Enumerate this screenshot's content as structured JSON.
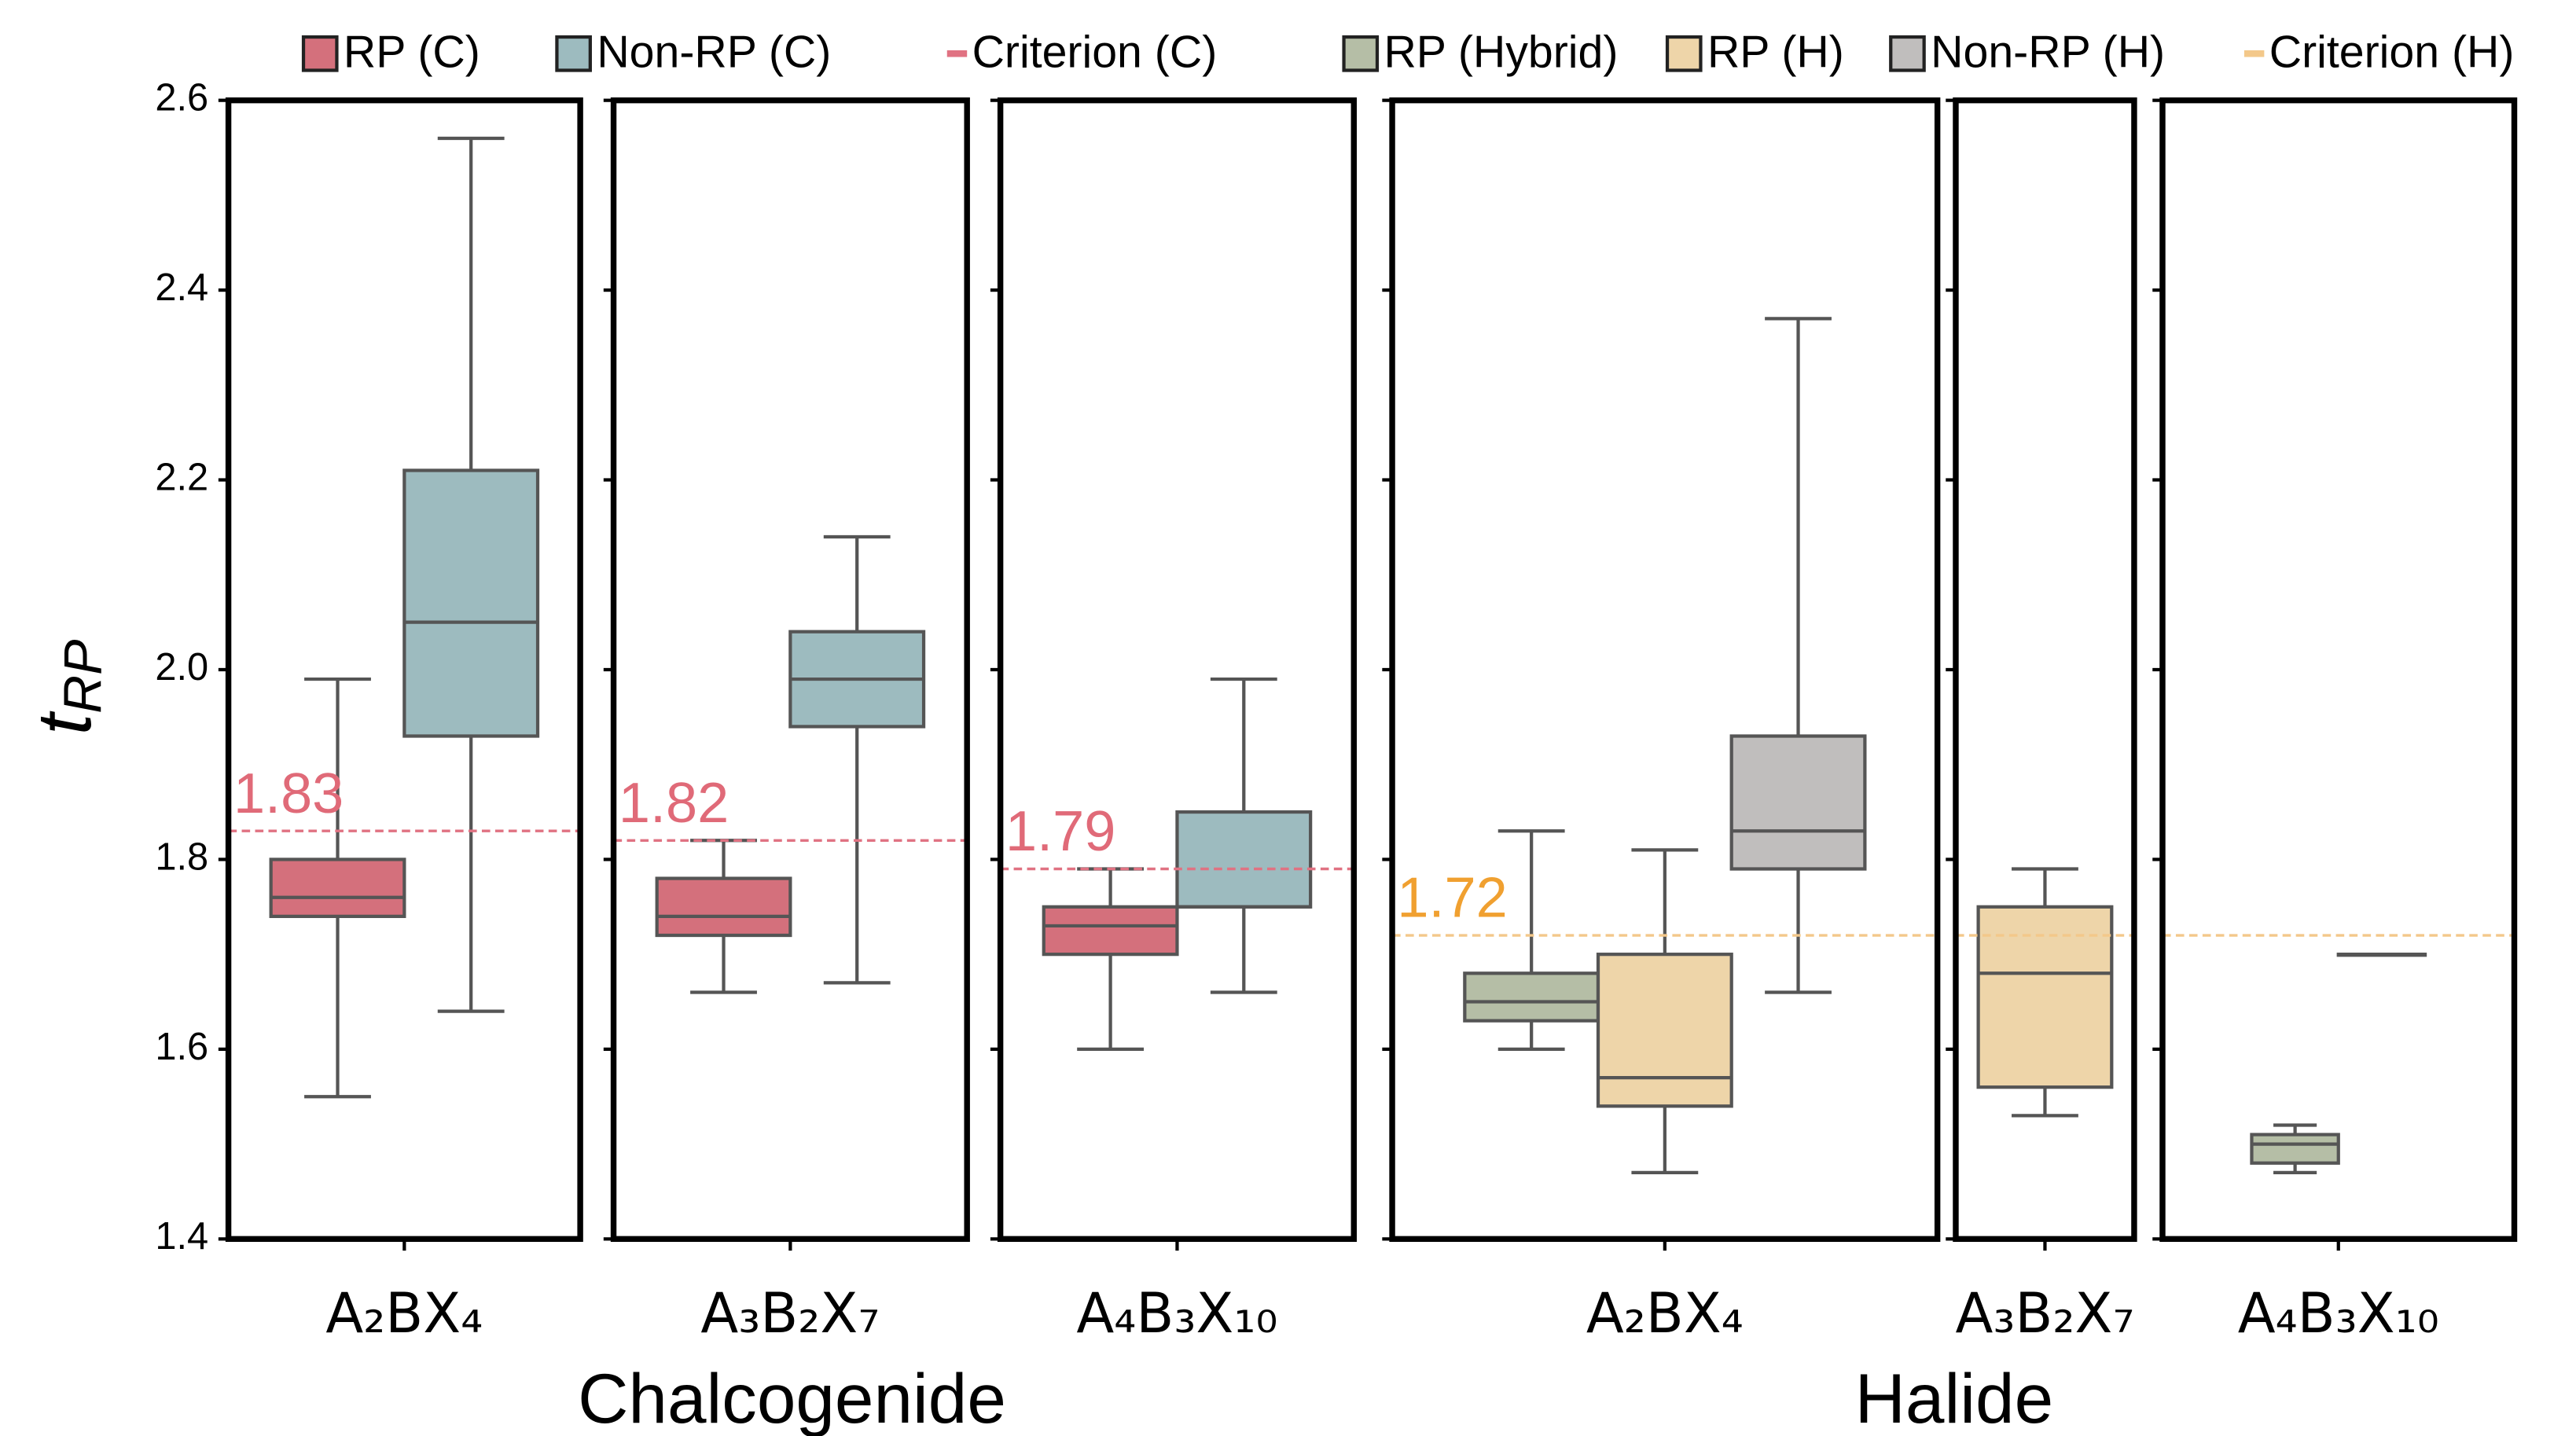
{
  "ylabel": "t",
  "ylabel_sub": "RP",
  "groups": [
    {
      "label": "Chalcogenide"
    },
    {
      "label": "Halide"
    }
  ],
  "chart_data": [
    {
      "type": "box",
      "category": "A₂BX₄",
      "ylim": [
        1.4,
        2.6
      ],
      "yticks": [
        1.4,
        1.6,
        1.8,
        {
          "value": 2,
          "label": "2.0"
        },
        2.2,
        2.4,
        2.6
      ],
      "show_ytick_labels": true,
      "series": [
        {
          "name": "RP (C)",
          "color": "#d4707c",
          "stats": {
            "whislo": 1.55,
            "q1": 1.74,
            "med": 1.76,
            "q3": 1.8,
            "whishi": 1.99
          }
        },
        {
          "name": "Non-RP (C)",
          "color": "#9dbbbf",
          "stats": {
            "whislo": 1.64,
            "q1": 1.93,
            "med": 2.05,
            "q3": 2.21,
            "whishi": 2.56
          }
        }
      ],
      "criterion": {
        "name": "Criterion (C)",
        "color": "#e07282",
        "label_color": "#e06a78",
        "value": 1.83,
        "show_label": true
      }
    },
    {
      "type": "box",
      "category": "A₃B₂X₇",
      "ylim": [
        1.4,
        2.6
      ],
      "yticks": [
        1.4,
        1.6,
        1.8,
        {
          "value": 2,
          "label": "2.0"
        },
        2.2,
        2.4,
        2.6
      ],
      "show_ytick_labels": false,
      "series": [
        {
          "name": "RP (C)",
          "color": "#d4707c",
          "stats": {
            "whislo": 1.66,
            "q1": 1.72,
            "med": 1.74,
            "q3": 1.78,
            "whishi": 1.82
          }
        },
        {
          "name": "Non-RP (C)",
          "color": "#9dbbbf",
          "stats": {
            "whislo": 1.67,
            "q1": 1.94,
            "med": 1.99,
            "q3": 2.04,
            "whishi": 2.14
          }
        }
      ],
      "criterion": {
        "name": "Criterion (C)",
        "color": "#e07282",
        "label_color": "#e06a78",
        "value": 1.82,
        "show_label": true
      }
    },
    {
      "type": "box",
      "category": "A₄B₃X₁₀",
      "ylim": [
        1.4,
        2.6
      ],
      "yticks": [
        1.4,
        1.6,
        1.8,
        {
          "value": 2,
          "label": "2.0"
        },
        2.2,
        2.4,
        2.6
      ],
      "show_ytick_labels": false,
      "series": [
        {
          "name": "RP (C)",
          "color": "#d4707c",
          "stats": {
            "whislo": 1.6,
            "q1": 1.7,
            "med": 1.73,
            "q3": 1.75,
            "whishi": 1.79
          }
        },
        {
          "name": "Non-RP (C)",
          "color": "#9dbbbf",
          "stats": {
            "whislo": 1.66,
            "q1": 1.75,
            "med": 1.75,
            "q3": 1.85,
            "whishi": 1.99
          }
        }
      ],
      "criterion": {
        "name": "Criterion (C)",
        "color": "#e07282",
        "label_color": "#e06a78",
        "value": 1.79,
        "show_label": true
      }
    },
    {
      "type": "box",
      "category": "A₂BX₄",
      "ylim": [
        1.4,
        2.6
      ],
      "yticks": [
        1.4,
        1.6,
        1.8,
        {
          "value": 2,
          "label": "2.0"
        },
        2.2,
        2.4,
        2.6
      ],
      "show_ytick_labels": false,
      "series": [
        {
          "name": "RP (Hybrid)",
          "color": "#b5bea6",
          "stats": {
            "whislo": 1.6,
            "q1": 1.63,
            "med": 1.65,
            "q3": 1.68,
            "whishi": 1.83
          }
        },
        {
          "name": "RP (H)",
          "color": "#eed5a9",
          "stats": {
            "whislo": 1.47,
            "q1": 1.54,
            "med": 1.57,
            "q3": 1.7,
            "whishi": 1.81
          }
        },
        {
          "name": "Non-RP (H)",
          "color": "#c0bebd",
          "stats": {
            "whislo": 1.66,
            "q1": 1.79,
            "med": 1.83,
            "q3": 1.93,
            "whishi": 2.37
          }
        }
      ],
      "criterion": {
        "name": "Criterion (H)",
        "color": "#f3c88a",
        "label_color": "#f0a030",
        "value": 1.72,
        "show_label": true
      }
    },
    {
      "type": "box",
      "category": "A₃B₂X₇",
      "ylim": [
        1.4,
        2.6
      ],
      "yticks": [
        1.4,
        1.6,
        1.8,
        {
          "value": 2,
          "label": "2.0"
        },
        2.2,
        2.4,
        2.6
      ],
      "show_ytick_labels": false,
      "series": [
        {
          "name": "RP (H)",
          "color": "#eed5a9",
          "stats": {
            "whislo": 1.53,
            "q1": 1.56,
            "med": 1.68,
            "q3": 1.75,
            "whishi": 1.79
          }
        }
      ],
      "criterion": {
        "name": "Criterion (H)",
        "color": "#f3c88a",
        "label_color": "#f0a030",
        "value": 1.72,
        "show_label": false
      }
    },
    {
      "type": "box",
      "category": "A₄B₃X₁₀",
      "ylim": [
        1.4,
        2.6
      ],
      "yticks": [
        1.4,
        1.6,
        1.8,
        {
          "value": 2,
          "label": "2.0"
        },
        2.2,
        2.4,
        2.6
      ],
      "show_ytick_labels": false,
      "series": [
        {
          "name": "RP (Hybrid)",
          "color": "#b5bea6",
          "stats": {
            "whislo": 1.47,
            "q1": 1.48,
            "med": 1.5,
            "q3": 1.51,
            "whishi": 1.52
          }
        },
        {
          "name": "Non-RP (H)",
          "color": "#c0bebd",
          "stats": {
            "whislo": 1.7,
            "q1": 1.7,
            "med": 1.7,
            "q3": 1.7,
            "whishi": 1.7
          }
        }
      ],
      "criterion": {
        "name": "Criterion (H)",
        "color": "#f3c88a",
        "label_color": "#f0a030",
        "value": 1.72,
        "show_label": false
      }
    }
  ]
}
